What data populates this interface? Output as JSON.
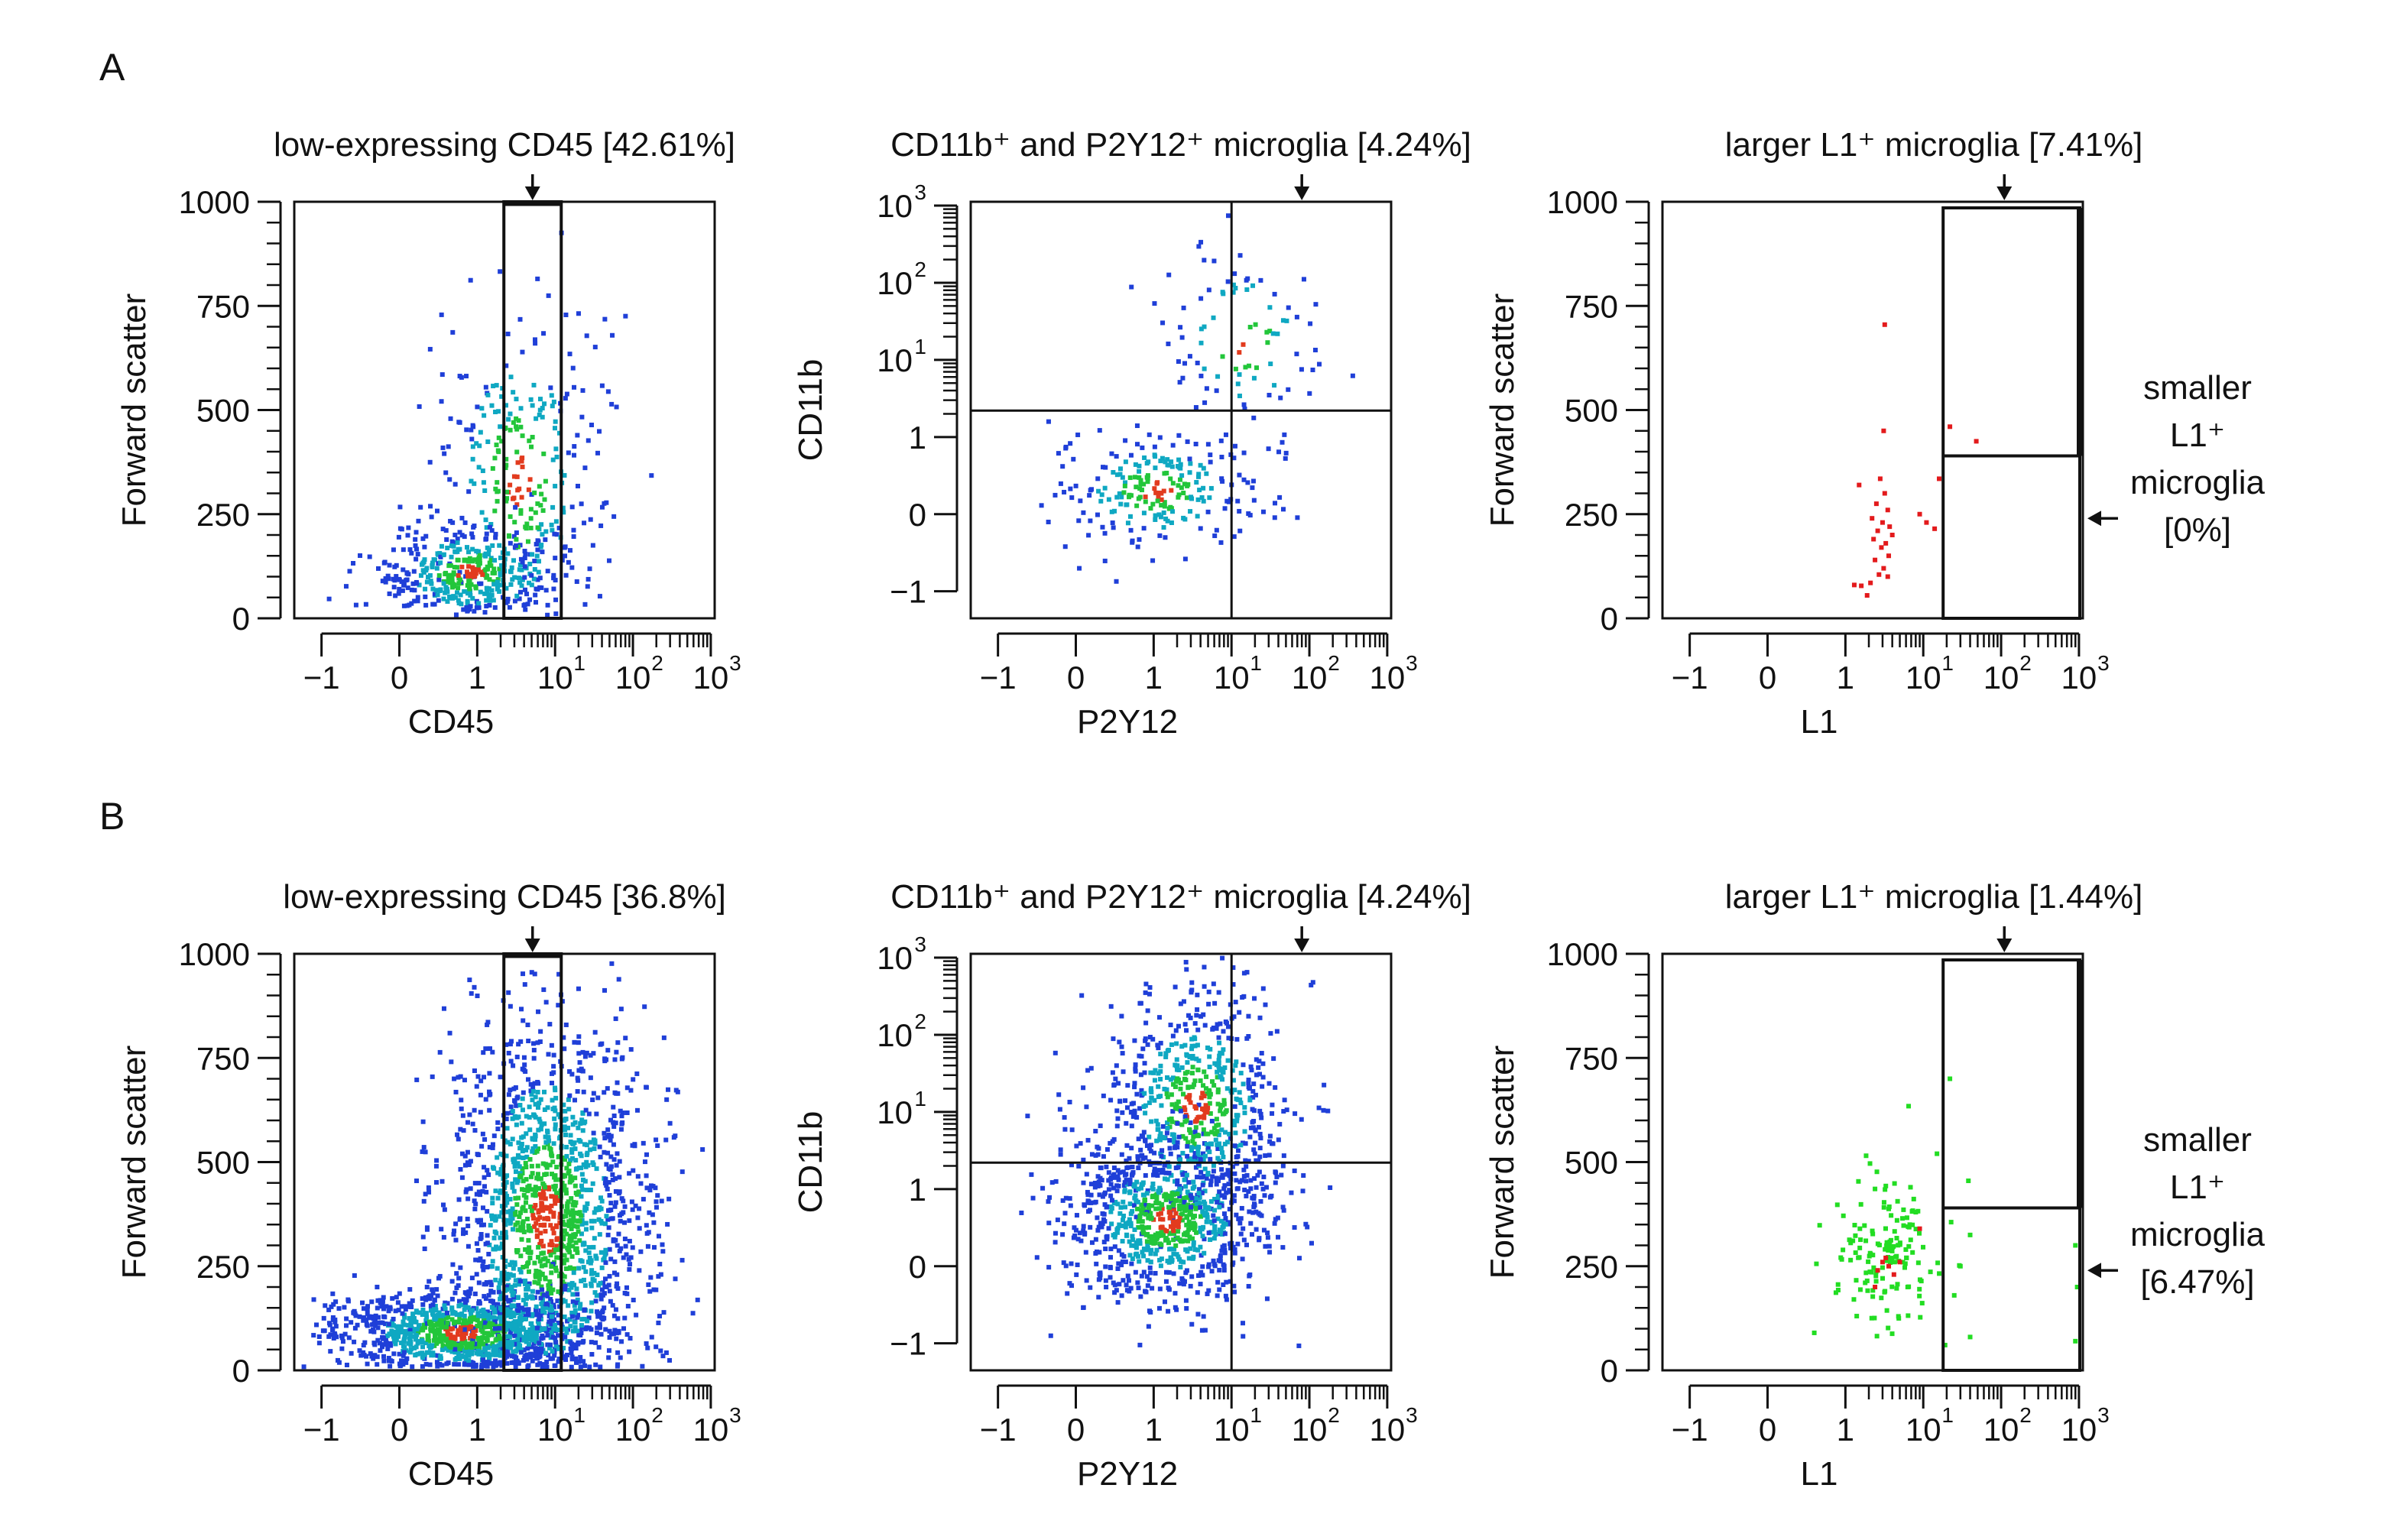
{
  "figure": {
    "panel_labels": [
      "A",
      "B"
    ],
    "colors": {
      "ink": "#111111",
      "low": "#1f3fd8",
      "mid": "#0fa8c2",
      "high": "#22c63a",
      "peak": "#e23b1e",
      "red_dot": "#e31a1c",
      "green_dot": "#22dd22"
    }
  },
  "chart_data": [
    {
      "id": "A1",
      "row": "A",
      "type": "scatter",
      "title": "low-expressing CD45 [42.61%]",
      "xlabel": "CD45",
      "ylabel": "Forward scatter",
      "x_ticks": [
        "−1",
        "0",
        "1",
        "10",
        "10",
        "10"
      ],
      "x_tick_exp": [
        "",
        "",
        "",
        "1",
        "2",
        "3"
      ],
      "y_ticks": [
        "0",
        "250",
        "500",
        "750",
        "1000"
      ],
      "gate": {
        "type": "vertical-band",
        "x_range": [
          2.2,
          12
        ],
        "marker": "arrow"
      },
      "density": {
        "style": "heat",
        "n_points": 700,
        "clusters": [
          {
            "x": 0.9,
            "y": 110,
            "sx": 0.5,
            "sy": 55,
            "w": 0.55
          },
          {
            "x": 3.5,
            "y": 330,
            "sx": 0.45,
            "sy": 200,
            "w": 0.45
          }
        ]
      }
    },
    {
      "id": "A2",
      "row": "A",
      "type": "scatter",
      "title": "CD11b⁺ and P2Y12⁺ microglia [4.24%]",
      "xlabel": "P2Y12",
      "ylabel": "CD11b",
      "x_ticks": [
        "−1",
        "0",
        "1",
        "10",
        "10",
        "10"
      ],
      "x_tick_exp": [
        "",
        "",
        "",
        "1",
        "2",
        "3"
      ],
      "y_ticks": [
        "−1",
        "0",
        "1",
        "10",
        "10",
        "10"
      ],
      "y_tick_exp": [
        "",
        "",
        "",
        "1",
        "2",
        "3"
      ],
      "gate": {
        "type": "quadrant",
        "x": 10,
        "y": 2.2,
        "marker": "arrow"
      },
      "density": {
        "style": "heat",
        "n_points": 330,
        "clusters": [
          {
            "x": 1.1,
            "y": 0.3,
            "sx": 0.55,
            "sy": 0.35,
            "w": 0.72
          },
          {
            "x": 14,
            "y": 18,
            "sx": 0.45,
            "sy": 0.55,
            "w": 0.28
          }
        ]
      }
    },
    {
      "id": "A3",
      "row": "A",
      "type": "scatter",
      "title": "larger L1⁺ microglia [7.41%]",
      "xlabel": "L1",
      "ylabel": "Forward scatter",
      "x_ticks": [
        "−1",
        "0",
        "1",
        "10",
        "10",
        "10"
      ],
      "x_tick_exp": [
        "",
        "",
        "",
        "1",
        "2",
        "3"
      ],
      "y_ticks": [
        "0",
        "250",
        "500",
        "750",
        "1000"
      ],
      "gate": {
        "type": "split-box",
        "x_range": [
          18,
          1000
        ],
        "y_split": 390,
        "marker": "arrow"
      },
      "side_label": [
        "smaller",
        "L1⁺",
        "microglia",
        "[0%]"
      ],
      "points": [
        {
          "x": 3.2,
          "y": 705
        },
        {
          "x": 3.1,
          "y": 450
        },
        {
          "x": 1.5,
          "y": 320
        },
        {
          "x": 2.8,
          "y": 335
        },
        {
          "x": 3.2,
          "y": 300
        },
        {
          "x": 2.5,
          "y": 275
        },
        {
          "x": 3.5,
          "y": 260
        },
        {
          "x": 2.2,
          "y": 240
        },
        {
          "x": 3.0,
          "y": 230
        },
        {
          "x": 3.7,
          "y": 220
        },
        {
          "x": 2.6,
          "y": 210
        },
        {
          "x": 4.0,
          "y": 200
        },
        {
          "x": 2.3,
          "y": 190
        },
        {
          "x": 3.3,
          "y": 180
        },
        {
          "x": 2.9,
          "y": 170
        },
        {
          "x": 3.6,
          "y": 150
        },
        {
          "x": 2.4,
          "y": 140
        },
        {
          "x": 3.1,
          "y": 120
        },
        {
          "x": 2.7,
          "y": 105
        },
        {
          "x": 1.3,
          "y": 80
        },
        {
          "x": 1.6,
          "y": 78
        },
        {
          "x": 2.1,
          "y": 85
        },
        {
          "x": 1.9,
          "y": 55
        },
        {
          "x": 3.5,
          "y": 100
        },
        {
          "x": 9.0,
          "y": 250
        },
        {
          "x": 11,
          "y": 230
        },
        {
          "x": 14,
          "y": 215
        },
        {
          "x": 16,
          "y": 335
        },
        {
          "x": 22,
          "y": 460
        },
        {
          "x": 48,
          "y": 425
        }
      ],
      "point_color": "#e31a1c"
    },
    {
      "id": "B1",
      "row": "B",
      "type": "scatter",
      "title": "low-expressing CD45 [36.8%]",
      "xlabel": "CD45",
      "ylabel": "Forward scatter",
      "x_ticks": [
        "−1",
        "0",
        "1",
        "10",
        "10",
        "10"
      ],
      "x_tick_exp": [
        "",
        "",
        "",
        "1",
        "2",
        "3"
      ],
      "y_ticks": [
        "0",
        "250",
        "500",
        "750",
        "1000"
      ],
      "gate": {
        "type": "vertical-band",
        "x_range": [
          2.2,
          12
        ],
        "marker": "arrow"
      },
      "density": {
        "style": "heat",
        "n_points": 2600,
        "clusters": [
          {
            "x": 0.8,
            "y": 90,
            "sx": 0.7,
            "sy": 50,
            "w": 0.4
          },
          {
            "x": 8,
            "y": 360,
            "sx": 0.55,
            "sy": 230,
            "w": 0.6
          }
        ]
      }
    },
    {
      "id": "B2",
      "row": "B",
      "type": "scatter",
      "title": "CD11b⁺ and P2Y12⁺ microglia [4.24%]",
      "xlabel": "P2Y12",
      "ylabel": "CD11b",
      "x_ticks": [
        "−1",
        "0",
        "1",
        "10",
        "10",
        "10"
      ],
      "x_tick_exp": [
        "",
        "",
        "",
        "1",
        "2",
        "3"
      ],
      "y_ticks": [
        "−1",
        "0",
        "1",
        "10",
        "10",
        "10"
      ],
      "y_tick_exp": [
        "",
        "",
        "",
        "1",
        "2",
        "3"
      ],
      "gate": {
        "type": "quadrant",
        "x": 10,
        "y": 2.2,
        "marker": "arrow"
      },
      "density": {
        "style": "heat",
        "n_points": 1500,
        "clusters": [
          {
            "x": 1.5,
            "y": 0.6,
            "sx": 0.55,
            "sy": 0.45,
            "w": 0.55
          },
          {
            "x": 3.5,
            "y": 12,
            "sx": 0.5,
            "sy": 0.65,
            "w": 0.45
          }
        ]
      }
    },
    {
      "id": "B3",
      "row": "B",
      "type": "scatter",
      "title": "larger L1⁺ microglia [1.44%]",
      "xlabel": "L1",
      "ylabel": "Forward scatter",
      "x_ticks": [
        "−1",
        "0",
        "1",
        "10",
        "10",
        "10"
      ],
      "x_tick_exp": [
        "",
        "",
        "",
        "1",
        "2",
        "3"
      ],
      "y_ticks": [
        "0",
        "250",
        "500",
        "750",
        "1000"
      ],
      "gate": {
        "type": "split-box",
        "x_range": [
          18,
          1000
        ],
        "y_split": 390,
        "marker": "arrow"
      },
      "side_label": [
        "smaller",
        "L1⁺",
        "microglia",
        "[6.47%]"
      ],
      "density": {
        "style": "green",
        "n_points": 150,
        "clusters": [
          {
            "x": 3.3,
            "y": 290,
            "sx": 0.28,
            "sy": 90,
            "w": 1
          }
        ]
      },
      "points": [
        {
          "x": 22,
          "y": 700
        },
        {
          "x": 38,
          "y": 455
        },
        {
          "x": 40,
          "y": 325
        },
        {
          "x": 30,
          "y": 250
        },
        {
          "x": 25,
          "y": 180
        },
        {
          "x": 40,
          "y": 80
        },
        {
          "x": 900,
          "y": 300
        },
        {
          "x": 950,
          "y": 200
        },
        {
          "x": 900,
          "y": 70
        },
        {
          "x": 15,
          "y": 520
        },
        {
          "x": 0.6,
          "y": 90
        }
      ],
      "point_color": "#22dd22",
      "highlight_points": [
        {
          "x": 3.0,
          "y": 260
        },
        {
          "x": 3.6,
          "y": 250
        },
        {
          "x": 4.2,
          "y": 230
        },
        {
          "x": 2.6,
          "y": 240
        },
        {
          "x": 3.3,
          "y": 270
        },
        {
          "x": 5,
          "y": 260
        },
        {
          "x": 2.4,
          "y": 200
        },
        {
          "x": 9,
          "y": 340
        }
      ],
      "highlight_color": "#e31a1c"
    }
  ]
}
